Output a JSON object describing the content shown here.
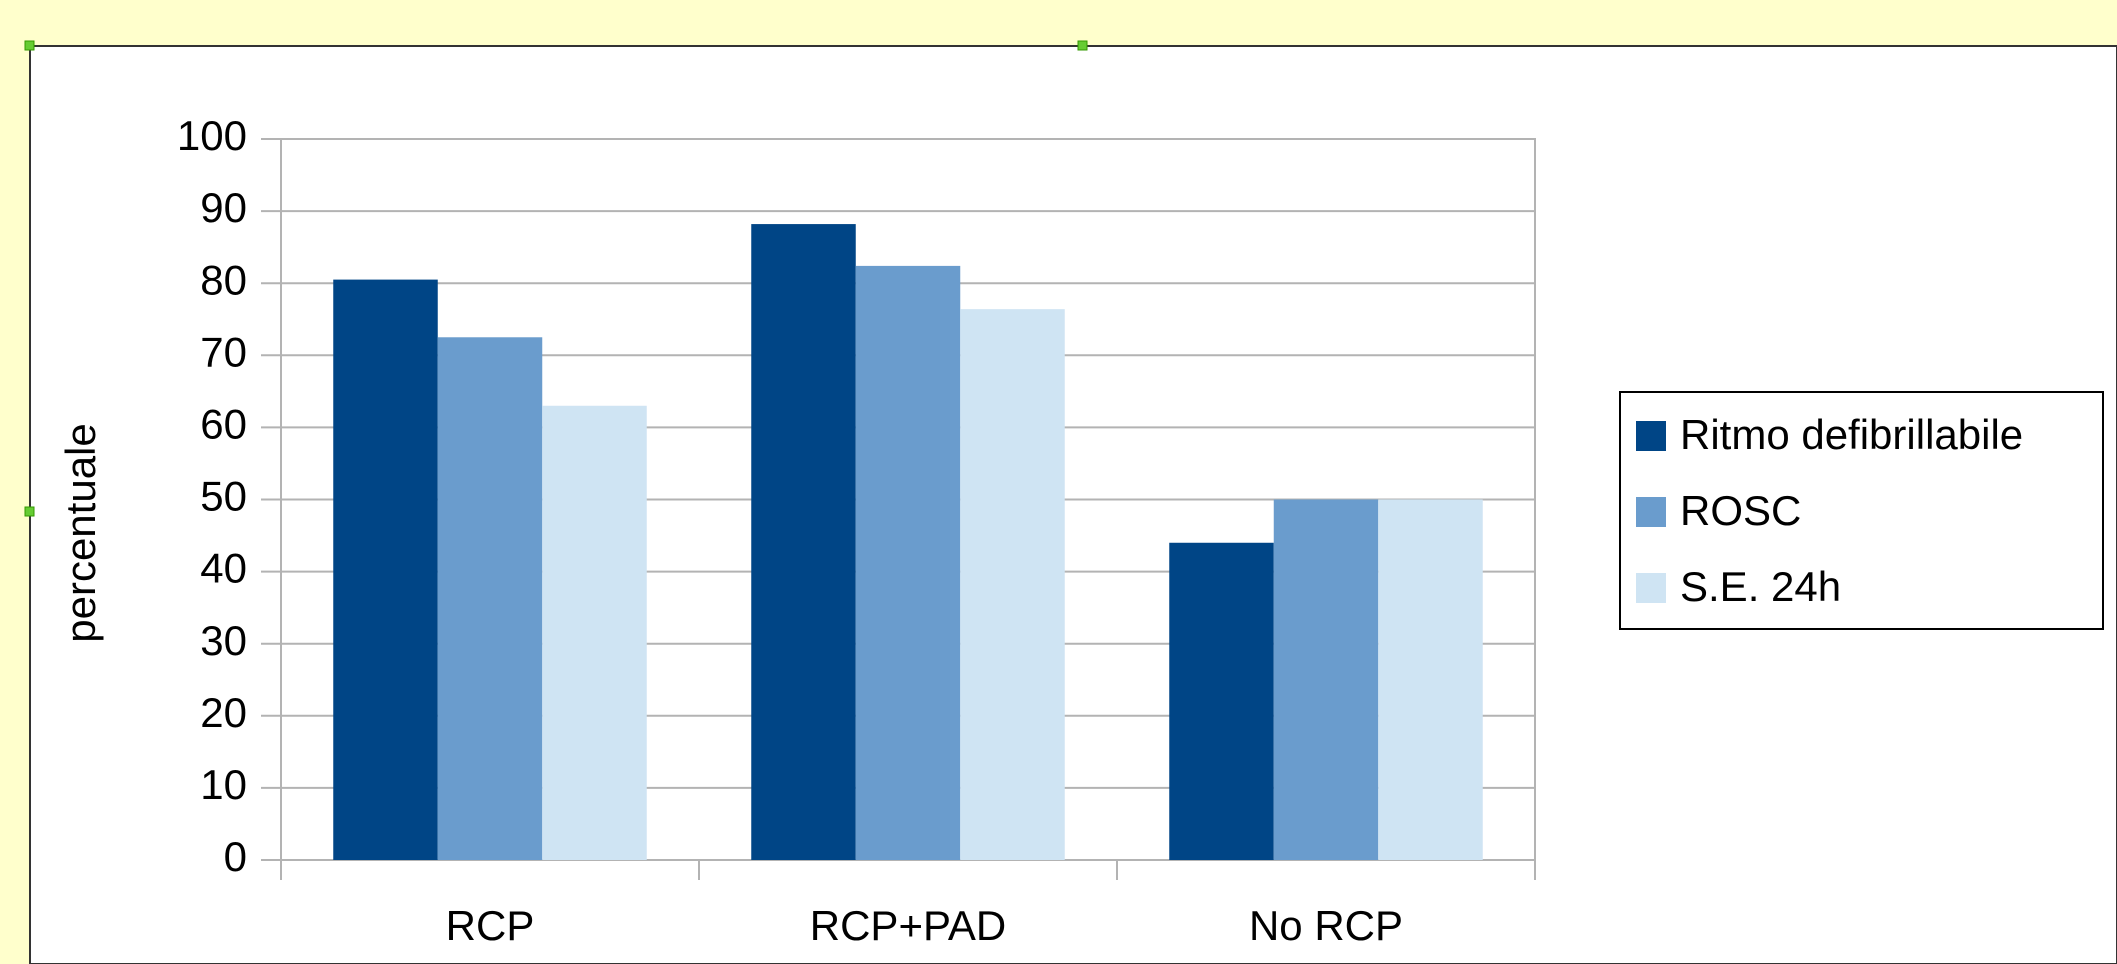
{
  "chart_data": {
    "type": "bar",
    "categories": [
      "RCP",
      "RCP+PAD",
      "No RCP"
    ],
    "series": [
      {
        "name": "Ritmo defibrillabile",
        "color": "#004586",
        "values": [
          80.5,
          88.2,
          44
        ]
      },
      {
        "name": "ROSC",
        "color": "#6a9ccd",
        "values": [
          72.5,
          82.4,
          50
        ]
      },
      {
        "name": "S.E. 24h",
        "color": "#cfe4f3",
        "values": [
          63,
          76.4,
          50
        ]
      }
    ],
    "y_label": "percentuale",
    "ylim": [
      0,
      100
    ],
    "yticks": [
      0,
      10,
      20,
      30,
      40,
      50,
      60,
      70,
      80,
      90,
      100
    ],
    "grid": true,
    "legend": "right"
  }
}
